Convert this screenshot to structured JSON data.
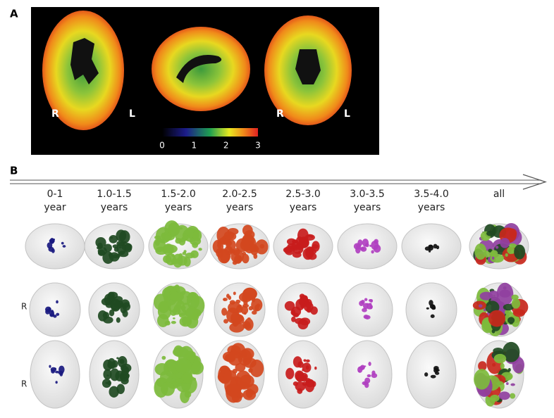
{
  "panel_a": {
    "label": "A",
    "slice_labels": [
      "R",
      "L",
      "R",
      "L"
    ],
    "colorbar_ticks": [
      0,
      1,
      2,
      3
    ]
  },
  "panel_b": {
    "label": "B",
    "columns": [
      {
        "line1": "0-1",
        "line2": "year"
      },
      {
        "line1": "1.0-1.5",
        "line2": "years"
      },
      {
        "line1": "1.5-2.0",
        "line2": "years"
      },
      {
        "line1": "2.0-2.5",
        "line2": "years"
      },
      {
        "line1": "2.5-3.0",
        "line2": "years"
      },
      {
        "line1": "3.0-3.5",
        "line2": "years"
      },
      {
        "line1": "3.5-4.0",
        "line2": "years"
      },
      {
        "line1": "all"
      }
    ],
    "row_labels": [
      "R",
      "R"
    ]
  }
}
